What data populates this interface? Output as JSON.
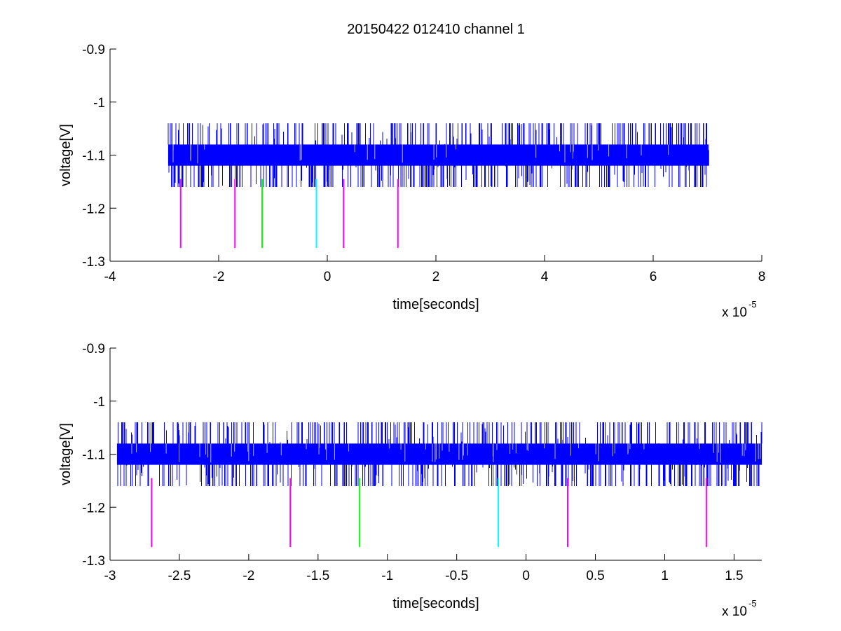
{
  "chart_data": [
    {
      "type": "line",
      "title": "20150422 012410 channel 1",
      "xlabel": "time[seconds]",
      "ylabel": "voltage[V]",
      "x_multiplier": "x 10",
      "x_exponent": "-5",
      "xlim": [
        -4,
        8
      ],
      "ylim": [
        -1.3,
        -0.9
      ],
      "xticks": [
        -4,
        -2,
        0,
        2,
        4,
        6,
        8
      ],
      "xtick_labels": [
        "-4",
        "-2",
        "0",
        "2",
        "4",
        "6",
        "8"
      ],
      "yticks": [
        -1.3,
        -1.2,
        -1.1,
        -1.0,
        -0.9
      ],
      "ytick_labels": [
        "-1.3",
        "-1.2",
        "-1.1",
        "-1",
        "-0.9"
      ],
      "grid": false,
      "series": [
        {
          "color": "#0000ff",
          "x_range": [
            -2.93,
            7.03
          ],
          "band": [
            -1.12,
            -1.08
          ],
          "spike_high": -1.04,
          "spike_low": -1.16
        }
      ],
      "markers": [
        {
          "x": -2.7,
          "color": "#ff00ff",
          "y_top": -1.145,
          "y_bottom": -1.275
        },
        {
          "x": -1.7,
          "color": "#ff00ff",
          "y_top": -1.145,
          "y_bottom": -1.275
        },
        {
          "x": -1.2,
          "color": "#00ff00",
          "y_top": -1.145,
          "y_bottom": -1.275
        },
        {
          "x": -0.2,
          "color": "#00ffff",
          "y_top": -1.145,
          "y_bottom": -1.275
        },
        {
          "x": 0.3,
          "color": "#ff00ff",
          "y_top": -1.145,
          "y_bottom": -1.275
        },
        {
          "x": 1.3,
          "color": "#ff00ff",
          "y_top": -1.145,
          "y_bottom": -1.275
        }
      ]
    },
    {
      "type": "line",
      "title": "",
      "xlabel": "time[seconds]",
      "ylabel": "voltage[V]",
      "x_multiplier": "x 10",
      "x_exponent": "-5",
      "xlim": [
        -3.0,
        1.7
      ],
      "ylim": [
        -1.3,
        -0.9
      ],
      "xticks": [
        -3,
        -2.5,
        -2,
        -1.5,
        -1,
        -0.5,
        0,
        0.5,
        1,
        1.5
      ],
      "xtick_labels": [
        "-3",
        "-2.5",
        "-2",
        "-1.5",
        "-1",
        "-0.5",
        "0",
        "0.5",
        "1",
        "1.5"
      ],
      "yticks": [
        -1.3,
        -1.2,
        -1.1,
        -1.0,
        -0.9
      ],
      "ytick_labels": [
        "-1.3",
        "-1.2",
        "-1.1",
        "-1",
        "-0.9"
      ],
      "grid": false,
      "series": [
        {
          "color": "#0000ff",
          "x_range": [
            -2.95,
            1.7
          ],
          "band": [
            -1.12,
            -1.08
          ],
          "spike_high": -1.04,
          "spike_low": -1.16
        }
      ],
      "markers": [
        {
          "x": -2.7,
          "color": "#ff00ff",
          "y_top": -1.145,
          "y_bottom": -1.275
        },
        {
          "x": -1.7,
          "color": "#ff00ff",
          "y_top": -1.145,
          "y_bottom": -1.275
        },
        {
          "x": -1.2,
          "color": "#00ff00",
          "y_top": -1.145,
          "y_bottom": -1.275
        },
        {
          "x": -0.2,
          "color": "#00ffff",
          "y_top": -1.145,
          "y_bottom": -1.275
        },
        {
          "x": 0.3,
          "color": "#ff00ff",
          "y_top": -1.145,
          "y_bottom": -1.275
        },
        {
          "x": 1.3,
          "color": "#ff00ff",
          "y_top": -1.145,
          "y_bottom": -1.275
        }
      ]
    }
  ]
}
